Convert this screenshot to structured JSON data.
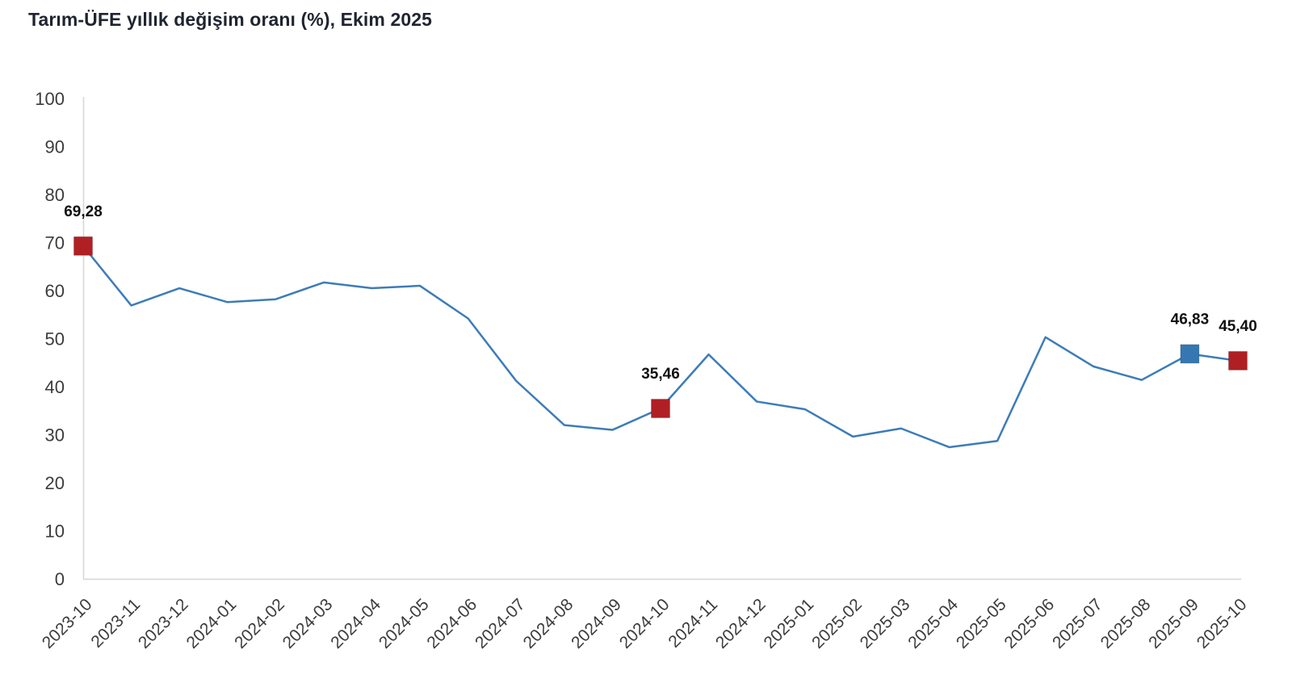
{
  "title": "Tarım-ÜFE yıllık değişim oranı (%), Ekim 2025",
  "colors": {
    "line": "#3d7cb8",
    "marker_red": "#b01f24",
    "marker_blue": "#3477b2",
    "axis_line": "#d6d6d6",
    "tick_text": "#3c3c3c",
    "title_text": "#1f2430",
    "annotation_text": "#101010",
    "background": "#ffffff"
  },
  "chart_data": {
    "type": "line",
    "title": "Tarım-ÜFE yıllık değişim oranı (%), Ekim 2025",
    "xlabel": "",
    "ylabel": "",
    "grid": false,
    "legend": "none",
    "ylim": [
      0,
      100
    ],
    "yticks": [
      0,
      10,
      20,
      30,
      40,
      50,
      60,
      70,
      80,
      90,
      100
    ],
    "categories": [
      "2023-10",
      "2023-11",
      "2023-12",
      "2024-01",
      "2024-02",
      "2024-03",
      "2024-04",
      "2024-05",
      "2024-06",
      "2024-07",
      "2024-08",
      "2024-09",
      "2024-10",
      "2024-11",
      "2024-12",
      "2025-01",
      "2025-02",
      "2025-03",
      "2025-04",
      "2025-05",
      "2025-06",
      "2025-07",
      "2025-08",
      "2025-09",
      "2025-10"
    ],
    "series": [
      {
        "name": "Tarım-ÜFE yıllık değişim oranı (%)",
        "values": [
          69.28,
          56.9,
          60.5,
          57.6,
          58.2,
          61.7,
          60.5,
          61.0,
          54.2,
          41.2,
          32.0,
          31.0,
          35.46,
          46.7,
          36.9,
          35.3,
          29.6,
          31.3,
          27.4,
          28.7,
          50.3,
          44.2,
          41.4,
          46.83,
          45.4
        ]
      }
    ],
    "annotations": [
      {
        "category": "2023-10",
        "index": 0,
        "label": "69,28",
        "marker": "square",
        "marker_color": "#b01f24"
      },
      {
        "category": "2024-10",
        "index": 12,
        "label": "35,46",
        "marker": "square",
        "marker_color": "#b01f24"
      },
      {
        "category": "2025-09",
        "index": 23,
        "label": "46,83",
        "marker": "square",
        "marker_color": "#3477b2"
      },
      {
        "category": "2025-10",
        "index": 24,
        "label": "45,40",
        "marker": "square",
        "marker_color": "#b01f24"
      }
    ]
  }
}
